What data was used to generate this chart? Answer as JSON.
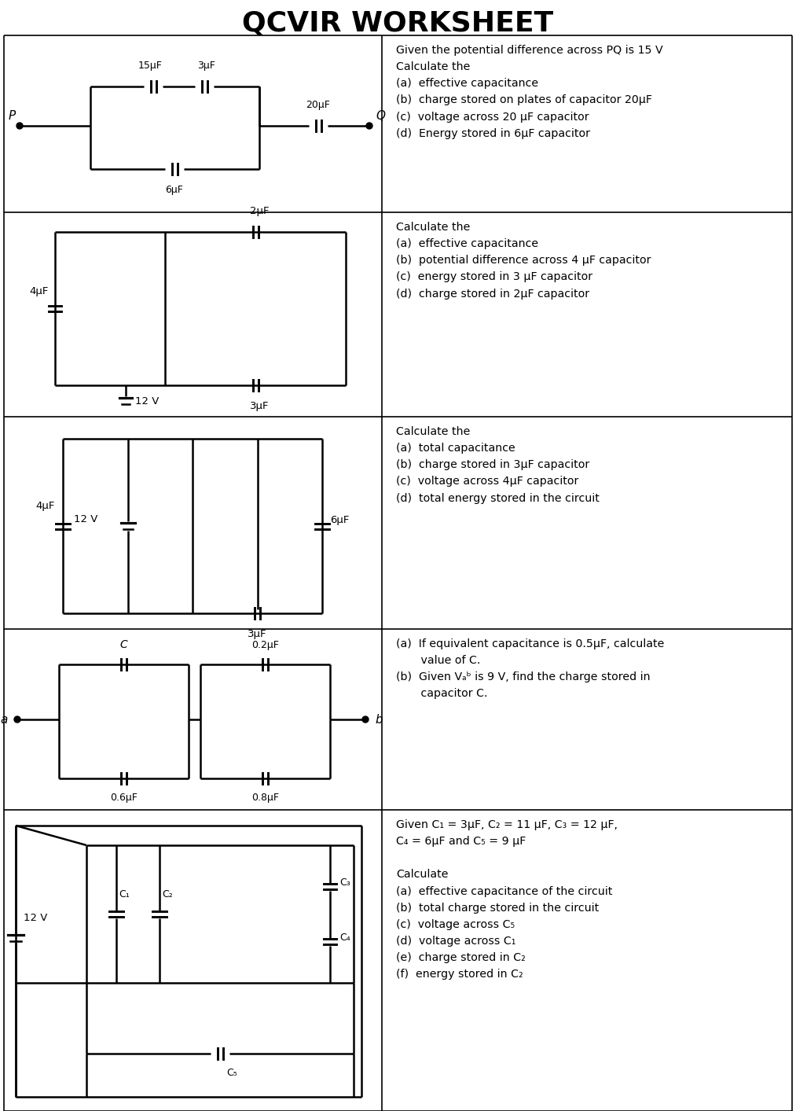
{
  "title": "QCVIR WORKSHEET",
  "title_fontsize": 26,
  "title_fontweight": "bold",
  "bg_color": "#ffffff",
  "text_color": "#000000",
  "q1": "Given the potential difference across PQ is 15 V\nCalculate the\n(a)  effective capacitance\n(b)  charge stored on plates of capacitor 20μF\n(c)  voltage across 20 μF capacitor\n(d)  Energy stored in 6μF capacitor",
  "q2": "Calculate the\n(a)  effective capacitance\n(b)  potential difference across 4 μF capacitor\n(c)  energy stored in 3 μF capacitor\n(d)  charge stored in 2μF capacitor",
  "q3": "Calculate the\n(a)  total capacitance\n(b)  charge stored in 3μF capacitor\n(c)  voltage across 4μF capacitor\n(d)  total energy stored in the circuit",
  "q4": "(a)  If equivalent capacitance is 0.5μF, calculate\n       value of C.\n(b)  Given Vₐᵇ is 9 V, find the charge stored in\n       capacitor C.",
  "q5": "Given C₁ = 3μF, C₂ = 11 μF, C₃ = 12 μF,\nC₄ = 6μF and C₅ = 9 μF\n\nCalculate\n(a)  effective capacitance of the circuit\n(b)  total charge stored in the circuit\n(c)  voltage across C₅\n(d)  voltage across C₁\n(e)  charge stored in C₂\n(f)  energy stored in C₂"
}
